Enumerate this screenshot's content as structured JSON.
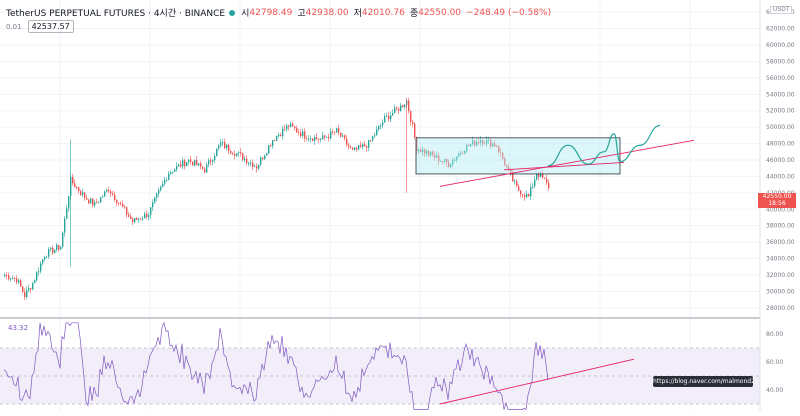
{
  "header": {
    "symbol": "TetherUS PERPETUAL FUTURES · 4시간 · BINANCE",
    "open_label": "시",
    "open": "42798.49",
    "high_label": "고",
    "high": "42938.00",
    "low_label": "저",
    "low": "42010.76",
    "close_label": "종",
    "close": "42550.00",
    "change": "−248.49 (−0.58%)",
    "sub_value": "0.01",
    "sub_price": "42537.57",
    "currency": "USDT"
  },
  "last_price": {
    "price": "42550.00",
    "countdown": "18:56"
  },
  "rsi": {
    "value": "43.32"
  },
  "watermark": "https://blog.naver.com/malmond2",
  "colors": {
    "up": "#26a69a",
    "down": "#ef5350",
    "rsi": "#7e57c2",
    "box_fill": "#b2ebf2",
    "box_stroke": "#26323a",
    "trend": "#e91e63",
    "projection": "#26a69a",
    "rsi_band": "#ede7f6"
  },
  "chart_data": {
    "type": "candlestick",
    "ylabel": "",
    "price_axis": {
      "ylim": [
        27000,
        65000
      ],
      "ticks": [
        "64000.00",
        "62000.00",
        "60000.00",
        "58000.00",
        "56000.00",
        "54000.00",
        "52000.00",
        "50000.00",
        "48000.00",
        "46000.00",
        "44000.00",
        "42000.00",
        "40000.00",
        "38000.00",
        "36000.00",
        "34000.00",
        "32000.00",
        "30000.00",
        "28000.00"
      ]
    },
    "price_waypoints": [
      [
        0,
        32000
      ],
      [
        6,
        31500
      ],
      [
        10,
        29500
      ],
      [
        14,
        31000
      ],
      [
        20,
        34500
      ],
      [
        28,
        35500
      ],
      [
        33,
        43500
      ],
      [
        40,
        41500
      ],
      [
        45,
        40500
      ],
      [
        52,
        42500
      ],
      [
        58,
        40500
      ],
      [
        64,
        38500
      ],
      [
        72,
        39500
      ],
      [
        82,
        44500
      ],
      [
        92,
        46000
      ],
      [
        100,
        44800
      ],
      [
        108,
        48000
      ],
      [
        118,
        46500
      ],
      [
        126,
        45200
      ],
      [
        134,
        48500
      ],
      [
        142,
        50200
      ],
      [
        150,
        49000
      ],
      [
        158,
        48500
      ],
      [
        166,
        49500
      ],
      [
        174,
        47000
      ],
      [
        182,
        48000
      ],
      [
        190,
        51000
      ],
      [
        198,
        52500
      ],
      [
        201,
        53200
      ],
      [
        204,
        50000
      ],
      [
        206,
        47500
      ],
      [
        214,
        46500
      ],
      [
        222,
        45500
      ],
      [
        230,
        47500
      ],
      [
        238,
        48500
      ],
      [
        246,
        47800
      ],
      [
        252,
        44500
      ],
      [
        256,
        42500
      ],
      [
        262,
        41500
      ],
      [
        266,
        44500
      ],
      [
        270,
        43500
      ],
      [
        272,
        42550
      ]
    ],
    "annotations": {
      "range_box": {
        "x_start": 206,
        "x_end": 308,
        "y_top": 48700,
        "y_bottom": 44300
      },
      "trend_line_1": {
        "x_start": 218,
        "y_start": 42800,
        "x_end": 345,
        "y_end": 48400
      },
      "trend_line_2": {
        "x_start": 250,
        "y_start": 44800,
        "x_end": 310,
        "y_end": 45700
      },
      "projection_path": [
        [
          272,
          45300
        ],
        [
          282,
          47800
        ],
        [
          292,
          45500
        ],
        [
          300,
          47000
        ],
        [
          305,
          49200
        ],
        [
          308,
          45800
        ],
        [
          318,
          47800
        ],
        [
          328,
          50200
        ]
      ]
    },
    "rsi_axis": {
      "ylim": [
        25,
        90
      ],
      "ticks": [
        "80.00",
        "60.00",
        "40.00"
      ],
      "upper_band": 70,
      "lower_band": 30
    },
    "rsi_trend_line": {
      "x_start": 218,
      "y_start": 30,
      "x_end": 315,
      "y_end": 62
    }
  }
}
